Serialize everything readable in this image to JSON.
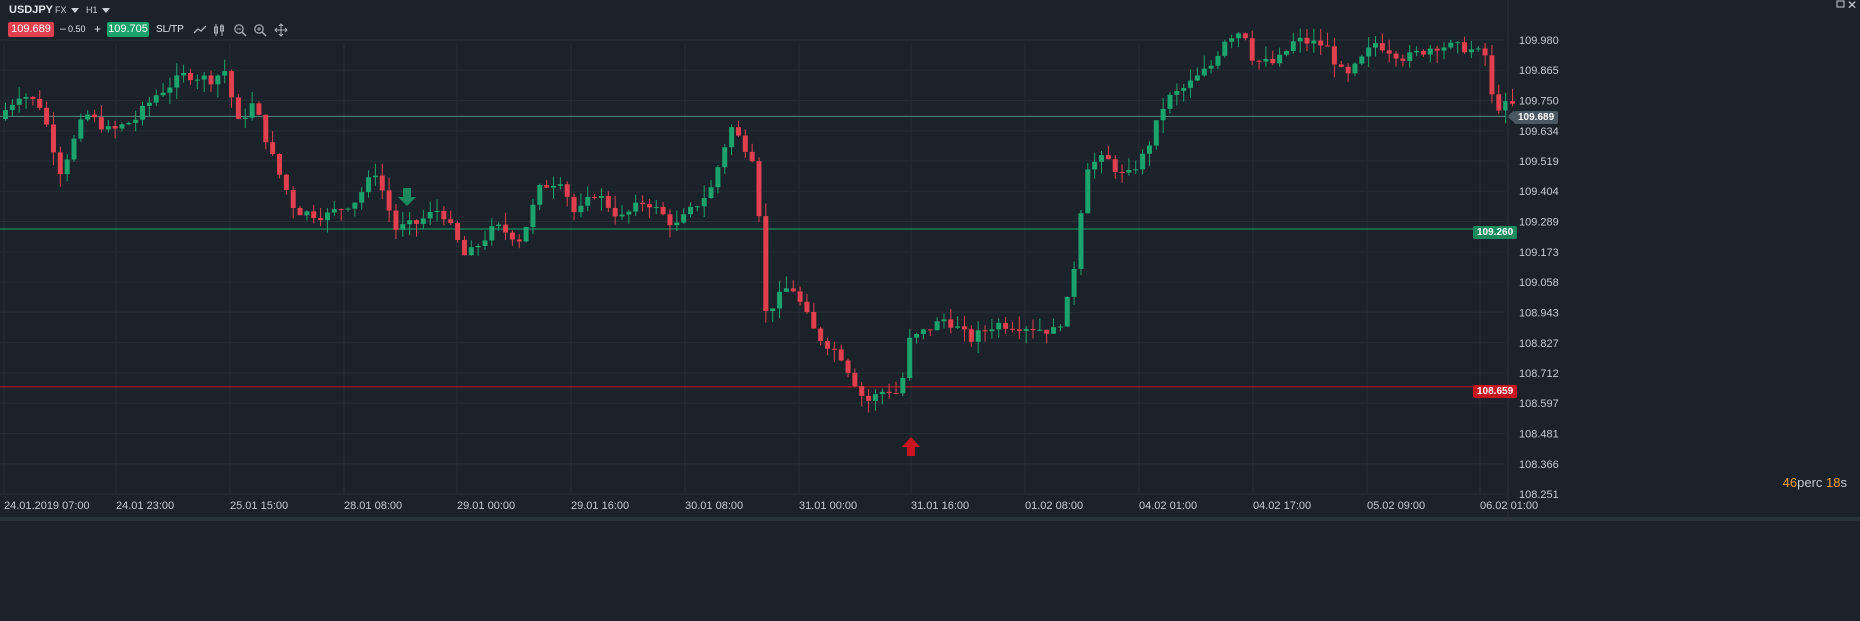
{
  "toolbar": {
    "symbol": "USDJPY",
    "market": "FX",
    "timeframe": "H1",
    "sell_price": "109.689",
    "minus": "–",
    "spread": "0.50",
    "plus": "+",
    "buy_price": "109.705",
    "sltp_label": "SL/TP",
    "icons": [
      "line-chart-icon",
      "candles-icon",
      "zoom-out-icon",
      "zoom-in-icon",
      "crosshair-icon"
    ],
    "window_controls": [
      "restore-icon",
      "close-icon"
    ]
  },
  "price_levels": {
    "current": "109.689",
    "buy_level": "109.260",
    "sell_level": "108.659"
  },
  "timer": {
    "minutes": "46",
    "minutes_unit": "perc",
    "seconds": "18",
    "seconds_unit": "s"
  },
  "colors": {
    "up": "#1aa36d",
    "down": "#e2404f",
    "bg": "#1b2229",
    "grid": "#262e36",
    "current_line": "#5b8a86",
    "buy_line": "#1aa36d",
    "sell_line": "#c8151f"
  },
  "chart_data": {
    "type": "candlestick",
    "symbol": "USDJPY",
    "timeframe": "H1",
    "y_ticks": [
      "109.980",
      "109.865",
      "109.750",
      "109.634",
      "109.519",
      "109.404",
      "109.289",
      "109.173",
      "109.058",
      "108.943",
      "108.827",
      "108.712",
      "108.597",
      "108.481",
      "108.366",
      "108.251"
    ],
    "x_ticks": [
      "24.01.2019 07:00",
      "24.01 23:00",
      "25.01 15:00",
      "28.01 08:00",
      "29.01 00:00",
      "29.01 16:00",
      "30.01 08:00",
      "31.01 00:00",
      "31.01 16:00",
      "01.02 08:00",
      "04.02 01:00",
      "04.02 17:00",
      "05.02 09:00",
      "06.02 01:00"
    ],
    "ylim": [
      108.251,
      110.06
    ],
    "current_price": 109.689,
    "horizontal_lines": [
      {
        "name": "buy-level",
        "value": 109.26
      },
      {
        "name": "sell-level",
        "value": 108.659
      }
    ],
    "markers": [
      {
        "type": "sell-arrow",
        "near": "28.01 08:00",
        "price": 109.38
      },
      {
        "type": "buy-arrow",
        "near": "31.01 16:00",
        "price": 108.43
      }
    ],
    "path_points": [
      [
        0,
        109.67
      ],
      [
        25,
        109.78
      ],
      [
        45,
        109.73
      ],
      [
        65,
        109.48
      ],
      [
        90,
        109.7
      ],
      [
        115,
        109.63
      ],
      [
        140,
        109.68
      ],
      [
        160,
        109.77
      ],
      [
        190,
        109.85
      ],
      [
        215,
        109.83
      ],
      [
        232,
        109.87
      ],
      [
        240,
        109.65
      ],
      [
        258,
        109.74
      ],
      [
        280,
        109.5
      ],
      [
        300,
        109.33
      ],
      [
        330,
        109.31
      ],
      [
        360,
        109.37
      ],
      [
        380,
        109.48
      ],
      [
        400,
        109.26
      ],
      [
        420,
        109.28
      ],
      [
        445,
        109.34
      ],
      [
        470,
        109.15
      ],
      [
        500,
        109.27
      ],
      [
        525,
        109.22
      ],
      [
        545,
        109.42
      ],
      [
        565,
        109.45
      ],
      [
        580,
        109.31
      ],
      [
        600,
        109.4
      ],
      [
        625,
        109.3
      ],
      [
        650,
        109.37
      ],
      [
        680,
        109.27
      ],
      [
        715,
        109.41
      ],
      [
        735,
        109.65
      ],
      [
        760,
        109.52
      ],
      [
        770,
        108.94
      ],
      [
        795,
        109.05
      ],
      [
        820,
        108.86
      ],
      [
        845,
        108.78
      ],
      [
        870,
        108.6
      ],
      [
        890,
        108.65
      ],
      [
        905,
        108.63
      ],
      [
        912,
        108.83
      ],
      [
        950,
        108.92
      ],
      [
        975,
        108.84
      ],
      [
        1000,
        108.9
      ],
      [
        1030,
        108.89
      ],
      [
        1060,
        108.87
      ],
      [
        1070,
        108.95
      ],
      [
        1080,
        109.15
      ],
      [
        1090,
        109.5
      ],
      [
        1110,
        109.53
      ],
      [
        1130,
        109.45
      ],
      [
        1150,
        109.55
      ],
      [
        1170,
        109.75
      ],
      [
        1190,
        109.8
      ],
      [
        1215,
        109.88
      ],
      [
        1230,
        109.99
      ],
      [
        1248,
        110.02
      ],
      [
        1258,
        109.9
      ],
      [
        1280,
        109.89
      ],
      [
        1300,
        109.98
      ],
      [
        1330,
        109.96
      ],
      [
        1350,
        109.83
      ],
      [
        1380,
        109.97
      ],
      [
        1410,
        109.91
      ],
      [
        1440,
        109.96
      ],
      [
        1470,
        109.95
      ],
      [
        1490,
        109.92
      ],
      [
        1498,
        109.72
      ],
      [
        1505,
        109.73
      ]
    ]
  }
}
